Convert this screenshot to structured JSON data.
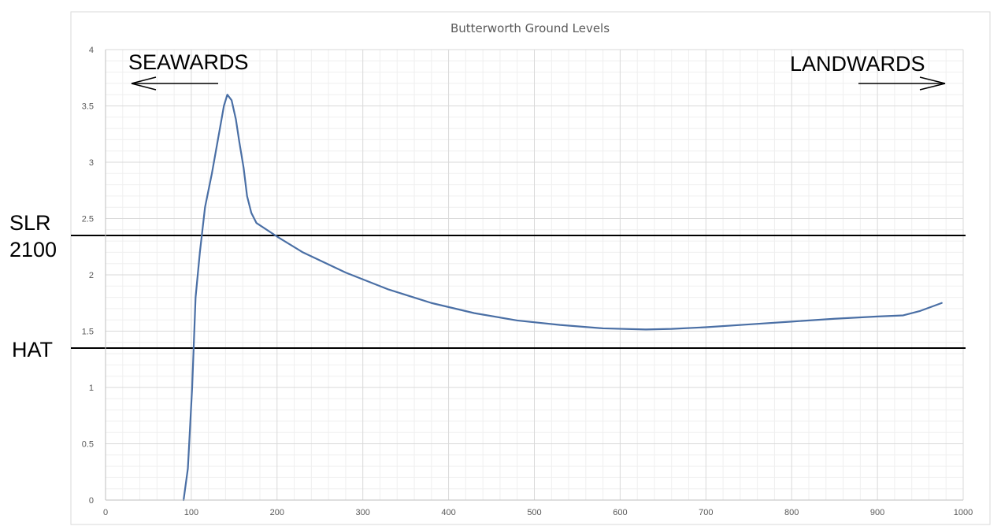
{
  "chart_data": {
    "type": "line",
    "title": "Butterworth Ground Levels",
    "xlabel": "",
    "ylabel": "",
    "xlim": [
      0,
      1000
    ],
    "ylim": [
      0,
      4
    ],
    "x_ticks": [
      "0",
      "100",
      "200",
      "300",
      "400",
      "500",
      "600",
      "700",
      "800",
      "900",
      "1000"
    ],
    "y_ticks": [
      "0",
      "0.5",
      "1",
      "1.5",
      "2",
      "2.5",
      "3",
      "3.5",
      "4"
    ],
    "grid": true,
    "series": [
      {
        "color": "#4a6fa5",
        "points": [
          [
            91,
            0
          ],
          [
            96,
            0.28
          ],
          [
            101,
            1.0
          ],
          [
            105,
            1.8
          ],
          [
            110,
            2.2
          ],
          [
            116,
            2.6
          ],
          [
            124,
            2.9
          ],
          [
            131,
            3.2
          ],
          [
            135,
            3.37
          ],
          [
            138,
            3.5
          ],
          [
            142,
            3.6
          ],
          [
            147,
            3.55
          ],
          [
            152,
            3.38
          ],
          [
            156,
            3.18
          ],
          [
            161,
            2.95
          ],
          [
            165,
            2.7
          ],
          [
            170,
            2.55
          ],
          [
            176,
            2.46
          ],
          [
            200,
            2.34
          ],
          [
            230,
            2.2
          ],
          [
            280,
            2.02
          ],
          [
            330,
            1.87
          ],
          [
            380,
            1.75
          ],
          [
            430,
            1.66
          ],
          [
            480,
            1.595
          ],
          [
            530,
            1.555
          ],
          [
            580,
            1.525
          ],
          [
            630,
            1.515
          ],
          [
            660,
            1.52
          ],
          [
            700,
            1.535
          ],
          [
            750,
            1.56
          ],
          [
            800,
            1.585
          ],
          [
            850,
            1.61
          ],
          [
            900,
            1.63
          ],
          [
            930,
            1.64
          ],
          [
            950,
            1.68
          ],
          [
            975,
            1.75
          ]
        ]
      }
    ],
    "reference_lines": [
      {
        "y": 2.35,
        "color": "#000000"
      },
      {
        "y": 1.35,
        "color": "#000000"
      }
    ],
    "annotations": {
      "left_top": "SEAWARDS",
      "right_top": "LANDWARDS",
      "slr_line1": "SLR",
      "slr_line2": "2100",
      "hat": "HAT"
    },
    "colors": {
      "gridline_major": "#d9d9d9",
      "gridline_minor": "#efefef",
      "axis": "#bfbfbf",
      "frame": "#d9d9d9"
    }
  }
}
